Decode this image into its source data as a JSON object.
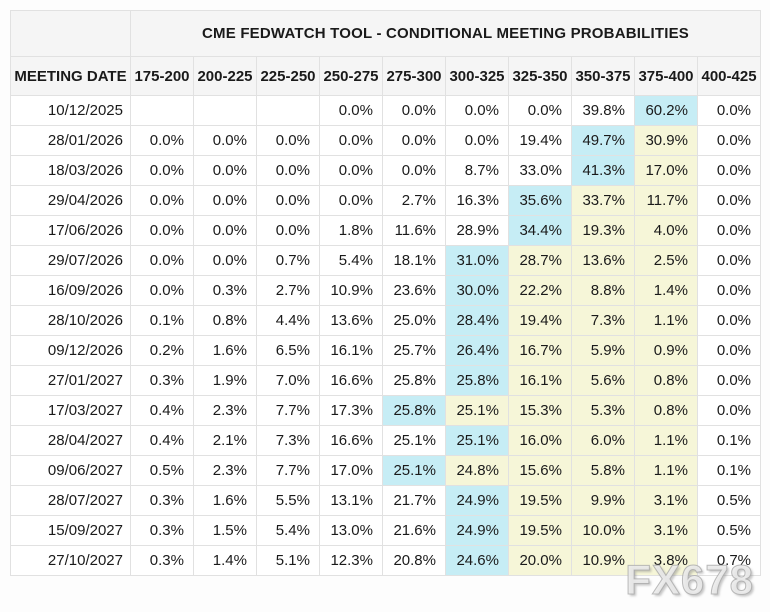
{
  "title": "CME FEDWATCH TOOL - CONDITIONAL MEETING PROBABILITIES",
  "watermark": "FX678",
  "colors": {
    "header_bg": "#f5f5f5",
    "border": "#e1e1e1",
    "text": "#1a1a1a",
    "highlight_cyan": "#c6edf5",
    "highlight_yellow": "#f6f6d8"
  },
  "chart_data": {
    "type": "table",
    "title": "CME FEDWATCH TOOL - CONDITIONAL MEETING PROBABILITIES",
    "columns": [
      "MEETING DATE",
      "175-200",
      "200-225",
      "225-250",
      "250-275",
      "275-300",
      "300-325",
      "325-350",
      "350-375",
      "375-400",
      "400-425"
    ],
    "highlight_colors": {
      "c": "#c6edf5",
      "y": "#f6f6d8"
    },
    "rows": [
      {
        "date": "10/12/2025",
        "values": [
          "",
          "",
          "",
          "0.0%",
          "0.0%",
          "0.0%",
          "0.0%",
          "39.8%",
          "60.2%",
          "0.0%"
        ],
        "highlights": [
          "",
          "",
          "",
          "",
          "",
          "",
          "",
          "",
          "c",
          ""
        ]
      },
      {
        "date": "28/01/2026",
        "values": [
          "0.0%",
          "0.0%",
          "0.0%",
          "0.0%",
          "0.0%",
          "0.0%",
          "19.4%",
          "49.7%",
          "30.9%",
          "0.0%"
        ],
        "highlights": [
          "",
          "",
          "",
          "",
          "",
          "",
          "",
          "c",
          "y",
          ""
        ]
      },
      {
        "date": "18/03/2026",
        "values": [
          "0.0%",
          "0.0%",
          "0.0%",
          "0.0%",
          "0.0%",
          "8.7%",
          "33.0%",
          "41.3%",
          "17.0%",
          "0.0%"
        ],
        "highlights": [
          "",
          "",
          "",
          "",
          "",
          "",
          "",
          "c",
          "y",
          ""
        ]
      },
      {
        "date": "29/04/2026",
        "values": [
          "0.0%",
          "0.0%",
          "0.0%",
          "0.0%",
          "2.7%",
          "16.3%",
          "35.6%",
          "33.7%",
          "11.7%",
          "0.0%"
        ],
        "highlights": [
          "",
          "",
          "",
          "",
          "",
          "",
          "c",
          "y",
          "y",
          ""
        ]
      },
      {
        "date": "17/06/2026",
        "values": [
          "0.0%",
          "0.0%",
          "0.0%",
          "1.8%",
          "11.6%",
          "28.9%",
          "34.4%",
          "19.3%",
          "4.0%",
          "0.0%"
        ],
        "highlights": [
          "",
          "",
          "",
          "",
          "",
          "",
          "c",
          "y",
          "y",
          ""
        ]
      },
      {
        "date": "29/07/2026",
        "values": [
          "0.0%",
          "0.0%",
          "0.7%",
          "5.4%",
          "18.1%",
          "31.0%",
          "28.7%",
          "13.6%",
          "2.5%",
          "0.0%"
        ],
        "highlights": [
          "",
          "",
          "",
          "",
          "",
          "c",
          "y",
          "y",
          "y",
          ""
        ]
      },
      {
        "date": "16/09/2026",
        "values": [
          "0.0%",
          "0.3%",
          "2.7%",
          "10.9%",
          "23.6%",
          "30.0%",
          "22.2%",
          "8.8%",
          "1.4%",
          "0.0%"
        ],
        "highlights": [
          "",
          "",
          "",
          "",
          "",
          "c",
          "y",
          "y",
          "y",
          ""
        ]
      },
      {
        "date": "28/10/2026",
        "values": [
          "0.1%",
          "0.8%",
          "4.4%",
          "13.6%",
          "25.0%",
          "28.4%",
          "19.4%",
          "7.3%",
          "1.1%",
          "0.0%"
        ],
        "highlights": [
          "",
          "",
          "",
          "",
          "",
          "c",
          "y",
          "y",
          "y",
          ""
        ]
      },
      {
        "date": "09/12/2026",
        "values": [
          "0.2%",
          "1.6%",
          "6.5%",
          "16.1%",
          "25.7%",
          "26.4%",
          "16.7%",
          "5.9%",
          "0.9%",
          "0.0%"
        ],
        "highlights": [
          "",
          "",
          "",
          "",
          "",
          "c",
          "y",
          "y",
          "y",
          ""
        ]
      },
      {
        "date": "27/01/2027",
        "values": [
          "0.3%",
          "1.9%",
          "7.0%",
          "16.6%",
          "25.8%",
          "25.8%",
          "16.1%",
          "5.6%",
          "0.8%",
          "0.0%"
        ],
        "highlights": [
          "",
          "",
          "",
          "",
          "",
          "c",
          "y",
          "y",
          "y",
          ""
        ]
      },
      {
        "date": "17/03/2027",
        "values": [
          "0.4%",
          "2.3%",
          "7.7%",
          "17.3%",
          "25.8%",
          "25.1%",
          "15.3%",
          "5.3%",
          "0.8%",
          "0.0%"
        ],
        "highlights": [
          "",
          "",
          "",
          "",
          "c",
          "y",
          "y",
          "y",
          "y",
          ""
        ]
      },
      {
        "date": "28/04/2027",
        "values": [
          "0.4%",
          "2.1%",
          "7.3%",
          "16.6%",
          "25.1%",
          "25.1%",
          "16.0%",
          "6.0%",
          "1.1%",
          "0.1%"
        ],
        "highlights": [
          "",
          "",
          "",
          "",
          "",
          "c",
          "y",
          "y",
          "y",
          ""
        ]
      },
      {
        "date": "09/06/2027",
        "values": [
          "0.5%",
          "2.3%",
          "7.7%",
          "17.0%",
          "25.1%",
          "24.8%",
          "15.6%",
          "5.8%",
          "1.1%",
          "0.1%"
        ],
        "highlights": [
          "",
          "",
          "",
          "",
          "c",
          "y",
          "y",
          "y",
          "y",
          ""
        ]
      },
      {
        "date": "28/07/2027",
        "values": [
          "0.3%",
          "1.6%",
          "5.5%",
          "13.1%",
          "21.7%",
          "24.9%",
          "19.5%",
          "9.9%",
          "3.1%",
          "0.5%"
        ],
        "highlights": [
          "",
          "",
          "",
          "",
          "",
          "c",
          "y",
          "y",
          "y",
          ""
        ]
      },
      {
        "date": "15/09/2027",
        "values": [
          "0.3%",
          "1.5%",
          "5.4%",
          "13.0%",
          "21.6%",
          "24.9%",
          "19.5%",
          "10.0%",
          "3.1%",
          "0.5%"
        ],
        "highlights": [
          "",
          "",
          "",
          "",
          "",
          "c",
          "y",
          "y",
          "y",
          ""
        ]
      },
      {
        "date": "27/10/2027",
        "values": [
          "0.3%",
          "1.4%",
          "5.1%",
          "12.3%",
          "20.8%",
          "24.6%",
          "20.0%",
          "10.9%",
          "3.8%",
          "0.7%"
        ],
        "highlights": [
          "",
          "",
          "",
          "",
          "",
          "c",
          "y",
          "y",
          "y",
          ""
        ]
      }
    ]
  }
}
